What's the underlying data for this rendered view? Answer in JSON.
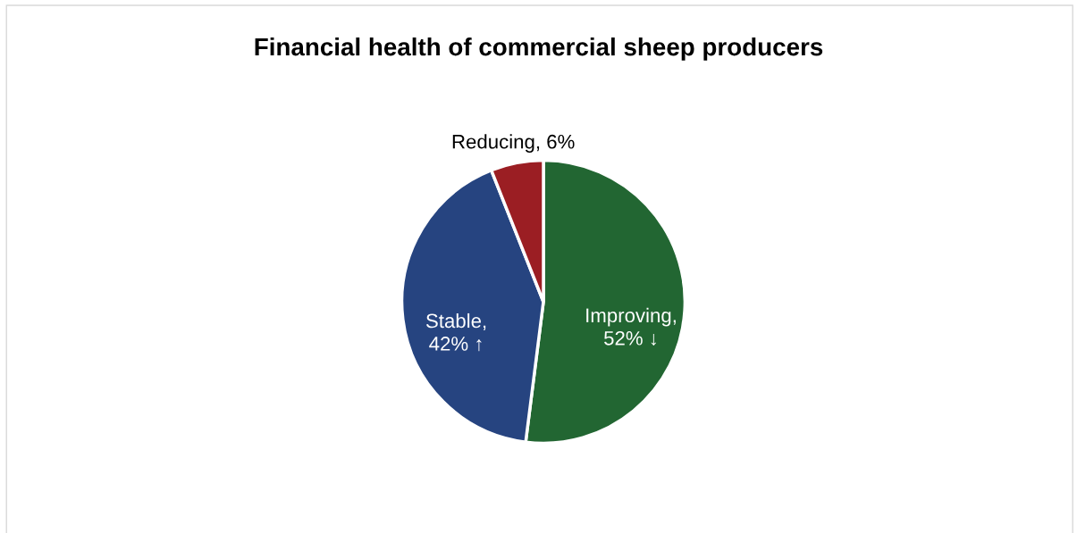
{
  "chart_data": {
    "type": "pie",
    "title": "Financial health of commercial sheep producers",
    "categories": [
      "Improving",
      "Stable",
      "Reducing"
    ],
    "values": [
      52,
      42,
      6
    ],
    "colors": [
      "#226632",
      "#264480",
      "#9b1e23"
    ],
    "value_labels": [
      ", 52% ↓",
      ", 42% ↑",
      ", 6%"
    ],
    "legend": false
  }
}
